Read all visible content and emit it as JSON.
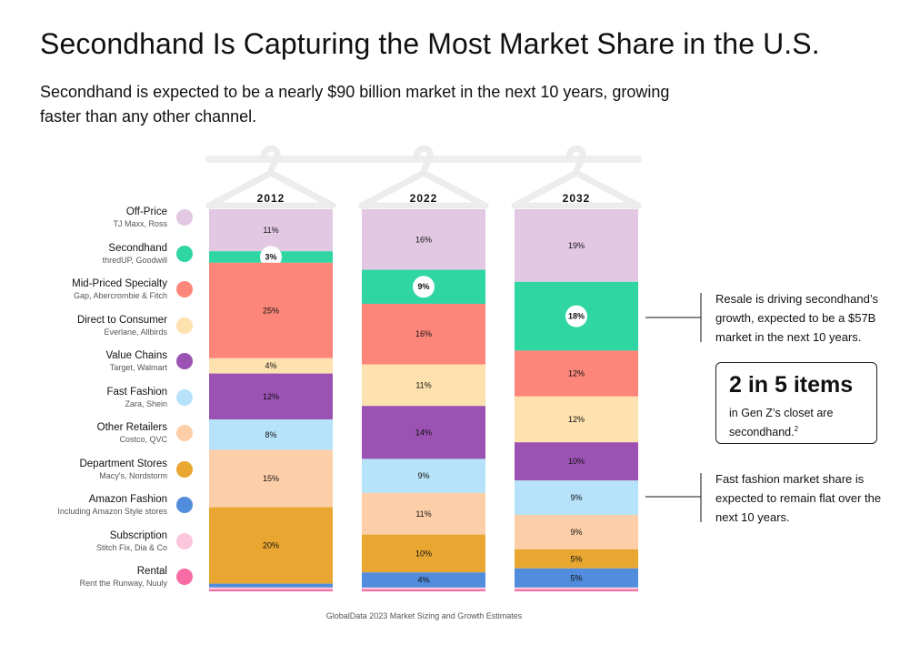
{
  "title": "Secondhand Is Capturing the Most Market Share in the U.S.",
  "subtitle": "Secondhand is expected to be a nearly $90 billion market in the next 10 years, growing faster than any other channel.",
  "legend": [
    {
      "name": "Off-Price",
      "sub": "TJ Maxx, Ross",
      "color": "#e3c8e4"
    },
    {
      "name": "Secondhand",
      "sub": "thredUP, Goodwill",
      "color": "#2fd6a1"
    },
    {
      "name": "Mid-Priced Specialty",
      "sub": "Gap, Abercrombie & Fitch",
      "color": "#fb8679"
    },
    {
      "name": "Direct to Consumer",
      "sub": "Everlane, Allbirds",
      "color": "#fde1af"
    },
    {
      "name": "Value Chains",
      "sub": "Target, Walmart",
      "color": "#9b52b2"
    },
    {
      "name": "Fast Fashion",
      "sub": "Zara, Shein",
      "color": "#b6e3f9"
    },
    {
      "name": "Other Retailers",
      "sub": "Costco, QVC",
      "color": "#fdcfa9"
    },
    {
      "name": "Department Stores",
      "sub": "Macy's, Nordstorm",
      "color": "#e9a630"
    },
    {
      "name": "Amazon Fashion",
      "sub": "Including Amazon Style stores",
      "color": "#528ddd"
    },
    {
      "name": "Subscription",
      "sub": "Stitch Fix, Dia & Co",
      "color": "#fbc7dd"
    },
    {
      "name": "Rental",
      "sub": "Rent the Runway, Nuuly",
      "color": "#f76ca5"
    }
  ],
  "callouts": {
    "resale": "Resale is driving secondhand’s growth, expected to be a $57B market in the next 10 years.",
    "fast_fashion": "Fast fashion market share is expected to remain flat over the next 10 years."
  },
  "stat": {
    "headline": "2 in 5 items",
    "text": "in Gen Z’s closet are secondhand.",
    "footnote": "2"
  },
  "source": "GlobalData 2023 Market Sizing and Growth Estimates",
  "chart_data": {
    "type": "bar",
    "stacked": true,
    "normalized": true,
    "categories": [
      "2012",
      "2022",
      "2032"
    ],
    "series": [
      {
        "name": "Off-Price",
        "values": [
          11,
          16,
          19
        ],
        "labels": [
          "11%",
          "16%",
          "19%"
        ]
      },
      {
        "name": "Secondhand",
        "values": [
          3,
          9,
          18
        ],
        "labels": [
          "3%",
          "9%",
          "18%"
        ],
        "highlight": true
      },
      {
        "name": "Mid-Priced Specialty",
        "values": [
          25,
          16,
          12
        ],
        "labels": [
          "25%",
          "16%",
          "12%"
        ]
      },
      {
        "name": "Direct to Consumer",
        "values": [
          4,
          11,
          12
        ],
        "labels": [
          "4%",
          "11%",
          "12%"
        ]
      },
      {
        "name": "Value Chains",
        "values": [
          12,
          14,
          10
        ],
        "labels": [
          "12%",
          "14%",
          "10%"
        ]
      },
      {
        "name": "Fast Fashion",
        "values": [
          8,
          9,
          9
        ],
        "labels": [
          "8%",
          "9%",
          "9%"
        ]
      },
      {
        "name": "Other Retailers",
        "values": [
          15,
          11,
          9
        ],
        "labels": [
          "15%",
          "11%",
          "9%"
        ]
      },
      {
        "name": "Department Stores",
        "values": [
          20,
          10,
          5
        ],
        "labels": [
          "20%",
          "10%",
          "5%"
        ]
      },
      {
        "name": "Amazon Fashion",
        "values": [
          1,
          4,
          5
        ],
        "labels": [
          "",
          "4%",
          "5%"
        ]
      },
      {
        "name": "Subscription",
        "values": [
          0.5,
          0.5,
          0.5
        ],
        "labels": [
          "",
          "",
          ""
        ]
      },
      {
        "name": "Rental",
        "values": [
          0.5,
          0.5,
          0.5
        ],
        "labels": [
          "",
          "",
          ""
        ]
      }
    ]
  }
}
